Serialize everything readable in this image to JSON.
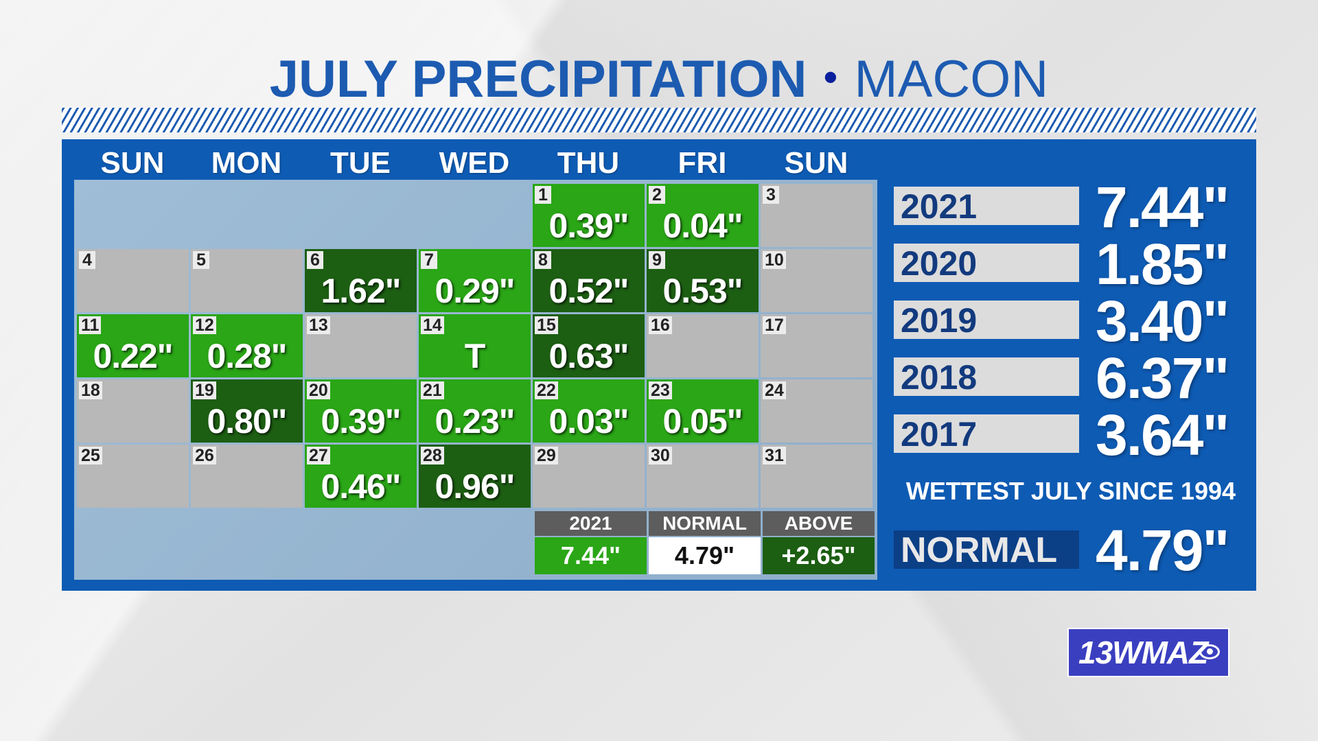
{
  "title": {
    "bold": "JULY PRECIPITATION",
    "separator": "•",
    "light": "MACON"
  },
  "colors": {
    "brand_blue": "#0e5bb4",
    "title_blue": "#1d5bb1",
    "green": "#2aa616",
    "dark_green": "#1c5e12",
    "gray": "#b8b8b8"
  },
  "day_headers": [
    "SUN",
    "MON",
    "TUE",
    "WED",
    "THU",
    "FRI",
    "SUN"
  ],
  "calendar": [
    {
      "day": "1",
      "value": "0.39\"",
      "shade": "green"
    },
    {
      "day": "2",
      "value": "0.04\"",
      "shade": "green"
    },
    {
      "day": "3",
      "value": "",
      "shade": "gray"
    },
    {
      "day": "4",
      "value": "",
      "shade": "gray"
    },
    {
      "day": "5",
      "value": "",
      "shade": "gray"
    },
    {
      "day": "6",
      "value": "1.62\"",
      "shade": "dark"
    },
    {
      "day": "7",
      "value": "0.29\"",
      "shade": "green"
    },
    {
      "day": "8",
      "value": "0.52\"",
      "shade": "dark"
    },
    {
      "day": "9",
      "value": "0.53\"",
      "shade": "dark"
    },
    {
      "day": "10",
      "value": "",
      "shade": "gray"
    },
    {
      "day": "11",
      "value": "0.22\"",
      "shade": "green"
    },
    {
      "day": "12",
      "value": "0.28\"",
      "shade": "green"
    },
    {
      "day": "13",
      "value": "",
      "shade": "gray"
    },
    {
      "day": "14",
      "value": "T",
      "shade": "green"
    },
    {
      "day": "15",
      "value": "0.63\"",
      "shade": "dark"
    },
    {
      "day": "16",
      "value": "",
      "shade": "gray"
    },
    {
      "day": "17",
      "value": "",
      "shade": "gray"
    },
    {
      "day": "18",
      "value": "",
      "shade": "gray"
    },
    {
      "day": "19",
      "value": "0.80\"",
      "shade": "dark"
    },
    {
      "day": "20",
      "value": "0.39\"",
      "shade": "green"
    },
    {
      "day": "21",
      "value": "0.23\"",
      "shade": "green"
    },
    {
      "day": "22",
      "value": "0.03\"",
      "shade": "green"
    },
    {
      "day": "23",
      "value": "0.05\"",
      "shade": "green"
    },
    {
      "day": "24",
      "value": "",
      "shade": "gray"
    },
    {
      "day": "25",
      "value": "",
      "shade": "gray"
    },
    {
      "day": "26",
      "value": "",
      "shade": "gray"
    },
    {
      "day": "27",
      "value": "0.46\"",
      "shade": "green"
    },
    {
      "day": "28",
      "value": "0.96\"",
      "shade": "dark"
    },
    {
      "day": "29",
      "value": "",
      "shade": "gray"
    },
    {
      "day": "30",
      "value": "",
      "shade": "gray"
    },
    {
      "day": "31",
      "value": "",
      "shade": "gray"
    }
  ],
  "summary": {
    "headers": [
      "2021",
      "NORMAL",
      "ABOVE"
    ],
    "values": [
      "7.44\"",
      "4.79\"",
      "+2.65\""
    ]
  },
  "yearly": [
    {
      "year": "2021",
      "value": "7.44\""
    },
    {
      "year": "2020",
      "value": "1.85\""
    },
    {
      "year": "2019",
      "value": "3.40\""
    },
    {
      "year": "2018",
      "value": "6.37\""
    },
    {
      "year": "2017",
      "value": "3.64\""
    }
  ],
  "note": "WETTEST JULY SINCE 1994",
  "normal": {
    "label": "NORMAL",
    "value": "4.79\""
  },
  "logo": {
    "text": "13WMAZ"
  }
}
